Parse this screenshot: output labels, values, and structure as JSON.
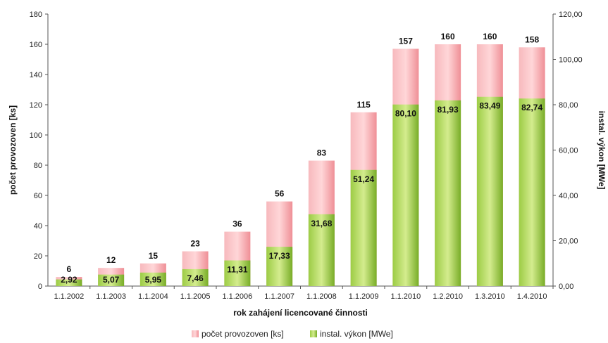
{
  "chart_data": {
    "type": "bar",
    "xlabel": "rok zahájení licencované činnosti",
    "ylabel_left": "počet provozoven [ks]",
    "ylabel_right": "instal. výkon [MWe]",
    "ylim_left": [
      0,
      180
    ],
    "ylim_right": [
      0,
      120
    ],
    "yticks_left": [
      "0",
      "20",
      "40",
      "60",
      "80",
      "100",
      "120",
      "140",
      "160",
      "180"
    ],
    "yticks_right": [
      "0,00",
      "20,00",
      "40,00",
      "60,00",
      "80,00",
      "100,00",
      "120,00"
    ],
    "grid": false,
    "legend_position": "bottom",
    "categories": [
      "1.1.2002",
      "1.1.2003",
      "1.1.2004",
      "1.1.2005",
      "1.1.2006",
      "1.1.2007",
      "1.1.2008",
      "1.1.2009",
      "1.1.2010",
      "1.2.2010",
      "1.3.2010",
      "1.4.2010"
    ],
    "series": [
      {
        "name": "počet provozoven [ks]",
        "axis": "left",
        "color": "#f4a3a8",
        "values": [
          6,
          12,
          15,
          23,
          36,
          56,
          83,
          115,
          157,
          160,
          160,
          158
        ],
        "labels": [
          "6",
          "12",
          "15",
          "23",
          "36",
          "56",
          "83",
          "115",
          "157",
          "160",
          "160",
          "158"
        ]
      },
      {
        "name": "instal. výkon [MWe]",
        "axis": "right",
        "color": "#8cc63f",
        "values": [
          2.92,
          5.07,
          5.95,
          7.46,
          11.31,
          17.33,
          31.68,
          51.24,
          80.1,
          81.93,
          83.49,
          82.74
        ],
        "labels": [
          "2,92",
          "5,07",
          "5,95",
          "7,46",
          "11,31",
          "17,33",
          "31,68",
          "51,24",
          "80,10",
          "81,93",
          "83,49",
          "82,74"
        ]
      }
    ]
  }
}
